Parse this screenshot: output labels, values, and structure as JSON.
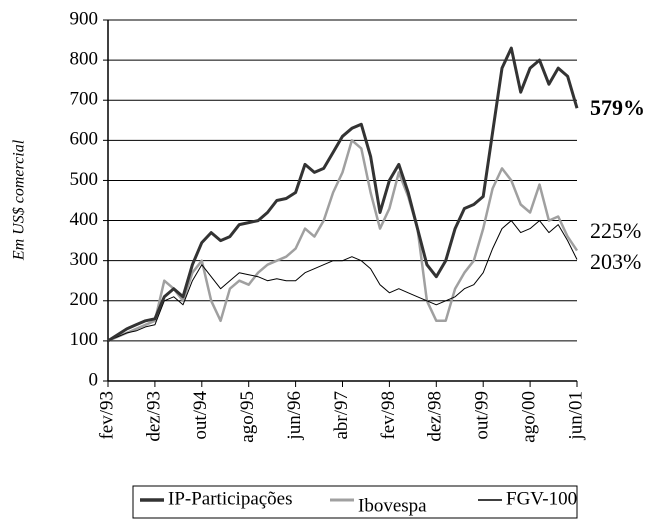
{
  "chart_data": {
    "type": "line",
    "ylabel": "Em US$ comercial",
    "categories": [
      "fev/93",
      null,
      null,
      null,
      null,
      "dez/93",
      null,
      null,
      null,
      null,
      "out/94",
      null,
      null,
      null,
      null,
      "ago/95",
      null,
      null,
      null,
      null,
      "jun/96",
      null,
      null,
      null,
      null,
      "abr/97",
      null,
      null,
      null,
      null,
      "fev/98",
      null,
      null,
      null,
      null,
      "dez/98",
      null,
      null,
      null,
      null,
      "out/99",
      null,
      null,
      null,
      null,
      "ago/00",
      null,
      null,
      null,
      null,
      "jun/01"
    ],
    "series": [
      {
        "name": "IP-Participações",
        "color": "#333333",
        "width": 3,
        "end_label": "579%",
        "end_label_bold": true,
        "values": [
          100,
          115,
          130,
          140,
          150,
          155,
          210,
          230,
          210,
          290,
          345,
          370,
          350,
          360,
          390,
          395,
          400,
          420,
          450,
          455,
          470,
          540,
          520,
          530,
          570,
          610,
          630,
          640,
          560,
          420,
          500,
          540,
          470,
          380,
          290,
          260,
          300,
          380,
          430,
          440,
          460,
          620,
          780,
          830,
          720,
          780,
          800,
          740,
          780,
          760,
          680
        ]
      },
      {
        "name": "Ibovespa",
        "color": "#a0a0a0",
        "width": 2.5,
        "end_label": "225%",
        "end_label_bold": false,
        "values": [
          100,
          110,
          120,
          130,
          140,
          150,
          250,
          230,
          200,
          270,
          300,
          200,
          150,
          230,
          250,
          240,
          270,
          290,
          300,
          310,
          330,
          380,
          360,
          400,
          470,
          520,
          600,
          580,
          470,
          380,
          430,
          520,
          460,
          380,
          200,
          150,
          150,
          230,
          270,
          300,
          380,
          480,
          530,
          500,
          440,
          420,
          490,
          400,
          410,
          360,
          325
        ]
      },
      {
        "name": "FGV-100",
        "color": "#000000",
        "width": 1,
        "end_label": "203%",
        "end_label_bold": false,
        "values": [
          100,
          110,
          120,
          125,
          135,
          140,
          200,
          210,
          190,
          250,
          290,
          260,
          230,
          250,
          270,
          265,
          260,
          250,
          255,
          250,
          250,
          270,
          280,
          290,
          300,
          300,
          310,
          300,
          280,
          240,
          220,
          230,
          220,
          210,
          200,
          190,
          200,
          210,
          230,
          240,
          270,
          330,
          380,
          400,
          370,
          380,
          400,
          370,
          390,
          350,
          303
        ]
      }
    ],
    "ylim": [
      0,
      900
    ],
    "yticks": [
      0,
      100,
      200,
      300,
      400,
      500,
      600,
      700,
      800,
      900
    ],
    "grid": true,
    "legend": "bottom"
  }
}
